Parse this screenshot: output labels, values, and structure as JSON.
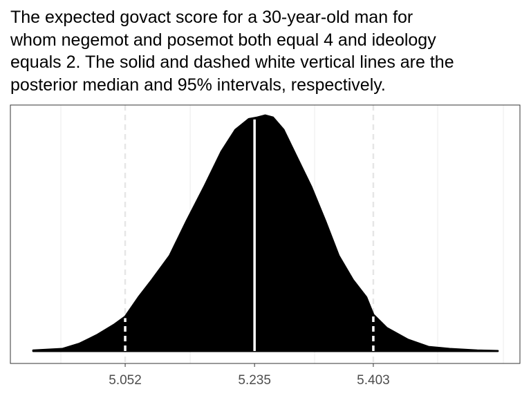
{
  "chart_data": {
    "type": "density",
    "title_lines": [
      "The expected govact score for a 30-year-old man for",
      "whom negemot and posemot both equal 4 and ideology",
      "equals 2. The solid and dashed white vertical lines are the",
      "posterior median and 95% intervals, respectively."
    ],
    "x": [
      4.922,
      4.963,
      4.987,
      5.012,
      5.036,
      5.052,
      5.071,
      5.09,
      5.115,
      5.139,
      5.164,
      5.188,
      5.208,
      5.227,
      5.239,
      5.25,
      5.261,
      5.276,
      5.296,
      5.315,
      5.335,
      5.354,
      5.374,
      5.393,
      5.403,
      5.422,
      5.452,
      5.481,
      5.511,
      5.55,
      5.579
    ],
    "values": [
      0.01,
      0.04,
      0.14,
      0.31,
      0.51,
      0.67,
      1.05,
      1.39,
      1.86,
      2.54,
      3.21,
      3.89,
      4.32,
      4.53,
      4.56,
      4.6,
      4.56,
      4.32,
      3.75,
      3.21,
      2.54,
      1.86,
      1.39,
      1.05,
      0.71,
      0.45,
      0.22,
      0.08,
      0.04,
      0.01,
      0
    ],
    "color": "#000000",
    "xlim": [
      4.8896,
      5.6104
    ],
    "ylim": [
      -0.243,
      4.804
    ],
    "xticks": [
      5.052,
      5.235,
      5.403
    ],
    "x_minor_grid": [
      4.961,
      5.144,
      5.32,
      5.494,
      5.587
    ],
    "vlines": [
      {
        "value": 5.052,
        "style": "dashed"
      },
      {
        "value": 5.235,
        "style": "solid"
      },
      {
        "value": 5.403,
        "style": "dashed"
      }
    ],
    "grid": true
  }
}
